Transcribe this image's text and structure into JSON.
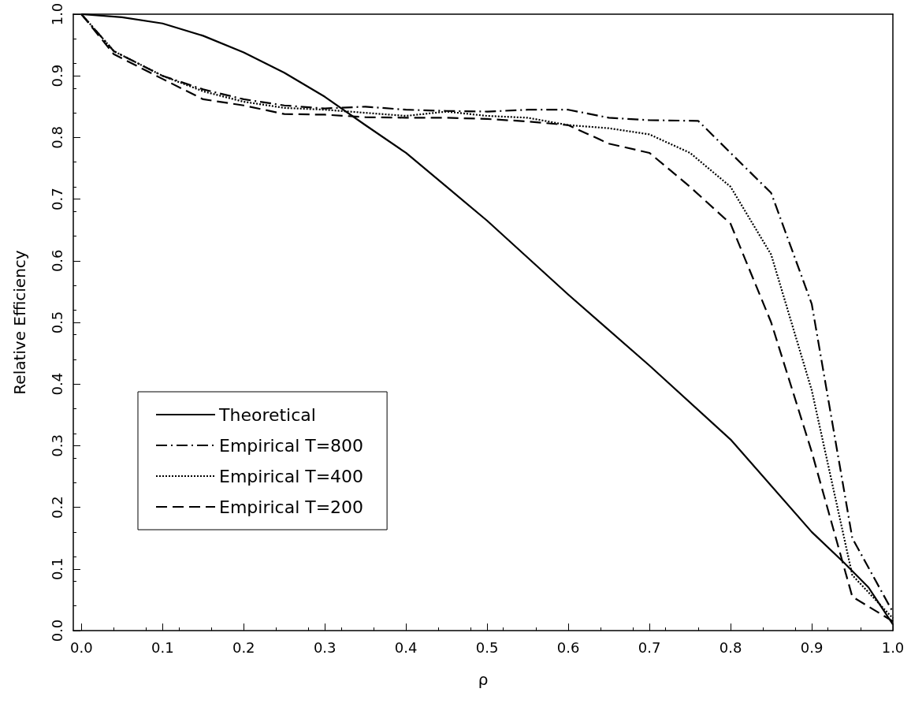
{
  "chart_data": {
    "type": "line",
    "xlabel": "ρ",
    "ylabel": "Relative Efficiency",
    "xlim": [
      -0.01,
      1.0
    ],
    "ylim": [
      0,
      1
    ],
    "xticks": [
      {
        "value": 0,
        "label": "0.0"
      },
      0.1,
      0.2,
      0.3,
      0.4,
      0.5,
      0.6,
      0.7,
      0.8,
      0.9,
      {
        "value": 1,
        "label": "1.0"
      }
    ],
    "yticks": [
      {
        "value": 0,
        "label": "0.0"
      },
      0.1,
      0.2,
      0.3,
      0.4,
      0.5,
      0.6,
      0.7,
      0.8,
      0.9,
      {
        "value": 1,
        "label": "1.0"
      }
    ],
    "legend": "bottom left",
    "marker": "none",
    "series": [
      {
        "name": "Theoretical",
        "color": "#000000",
        "line_style": "solid",
        "x": [
          0,
          0.05,
          0.1,
          0.15,
          0.2,
          0.25,
          0.3,
          0.35,
          0.4,
          0.45,
          0.5,
          0.6,
          0.7,
          0.8,
          0.9,
          0.94,
          0.97,
          1.0
        ],
        "values": [
          1,
          0.995,
          0.985,
          0.965,
          0.938,
          0.905,
          0.866,
          0.82,
          0.775,
          0.72,
          0.665,
          0.545,
          0.43,
          0.31,
          0.16,
          0.11,
          0.07,
          0.01
        ]
      },
      {
        "name": "Empirical T=800",
        "color": "#000000",
        "line_style": "dashdot",
        "x": [
          0,
          0.04,
          0.1,
          0.15,
          0.2,
          0.25,
          0.3,
          0.35,
          0.4,
          0.45,
          0.5,
          0.55,
          0.6,
          0.65,
          0.7,
          0.76,
          0.85,
          0.9,
          0.95,
          1.0
        ],
        "values": [
          1,
          0.94,
          0.9,
          0.878,
          0.862,
          0.852,
          0.847,
          0.85,
          0.845,
          0.843,
          0.842,
          0.845,
          0.845,
          0.832,
          0.828,
          0.827,
          0.71,
          0.53,
          0.15,
          0.03
        ]
      },
      {
        "name": "Empirical T=400",
        "color": "#000000",
        "line_style": "dotted",
        "x": [
          0,
          0.04,
          0.1,
          0.15,
          0.2,
          0.25,
          0.3,
          0.35,
          0.4,
          0.45,
          0.5,
          0.55,
          0.6,
          0.65,
          0.7,
          0.75,
          0.8,
          0.85,
          0.9,
          0.95,
          1.0
        ],
        "values": [
          1,
          0.94,
          0.9,
          0.875,
          0.858,
          0.848,
          0.845,
          0.84,
          0.835,
          0.842,
          0.835,
          0.832,
          0.82,
          0.815,
          0.805,
          0.775,
          0.72,
          0.61,
          0.39,
          0.09,
          0.02
        ]
      },
      {
        "name": "Empirical T=200",
        "color": "#000000",
        "line_style": "dashed",
        "x": [
          0,
          0.04,
          0.1,
          0.15,
          0.2,
          0.25,
          0.3,
          0.35,
          0.4,
          0.45,
          0.5,
          0.55,
          0.6,
          0.65,
          0.7,
          0.75,
          0.8,
          0.85,
          0.9,
          0.95,
          1.0
        ],
        "values": [
          1,
          0.935,
          0.895,
          0.862,
          0.852,
          0.838,
          0.837,
          0.833,
          0.832,
          0.832,
          0.83,
          0.826,
          0.82,
          0.79,
          0.775,
          0.72,
          0.66,
          0.5,
          0.29,
          0.055,
          0.015
        ]
      }
    ]
  }
}
